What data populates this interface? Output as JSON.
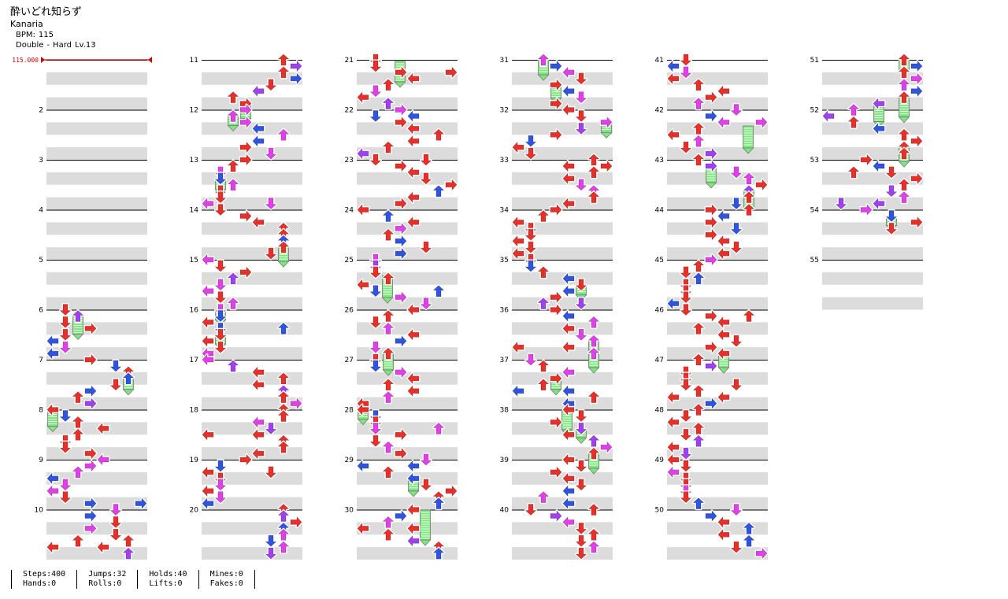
{
  "header": {
    "title": "酔いどれ知らず",
    "artist": "Kanaria",
    "bpm_label": "BPM:",
    "bpm": "115",
    "style": "Double",
    "separator": "-",
    "difficulty": "Hard",
    "level": "Lv.13"
  },
  "chart_marker": {
    "bpm_change": "115.000"
  },
  "colors": {
    "quarter": "#e8302a",
    "eighth": "#2f54e0",
    "sixteenth": "#e040e8",
    "twelfth": "#a040f0",
    "hold": "#7ee67e",
    "beat_band": "#dcdcdc",
    "bpm_marker": "#d00000"
  },
  "measure_numbers": [
    "2",
    "3",
    "4",
    "5",
    "6",
    "7",
    "8",
    "9",
    "10",
    "11",
    "12",
    "13",
    "14",
    "15",
    "16",
    "17",
    "18",
    "19",
    "20",
    "21",
    "22",
    "23",
    "24",
    "25",
    "26",
    "27",
    "28",
    "29",
    "30",
    "31",
    "32",
    "33",
    "34",
    "35",
    "36",
    "37",
    "38",
    "39",
    "40",
    "41",
    "42",
    "43",
    "44",
    "45",
    "46",
    "47",
    "48",
    "49",
    "50",
    "51",
    "52",
    "53",
    "54",
    "55"
  ],
  "stats": [
    {
      "label": "Steps",
      "value": "400"
    },
    {
      "label": "Hands",
      "value": "0"
    },
    {
      "label": "Jumps",
      "value": "32"
    },
    {
      "label": "Rolls",
      "value": "0"
    },
    {
      "label": "Holds",
      "value": "40"
    },
    {
      "label": "Lifts",
      "value": "0"
    },
    {
      "label": "Mines",
      "value": "0"
    },
    {
      "label": "Fakes",
      "value": "0"
    }
  ]
}
